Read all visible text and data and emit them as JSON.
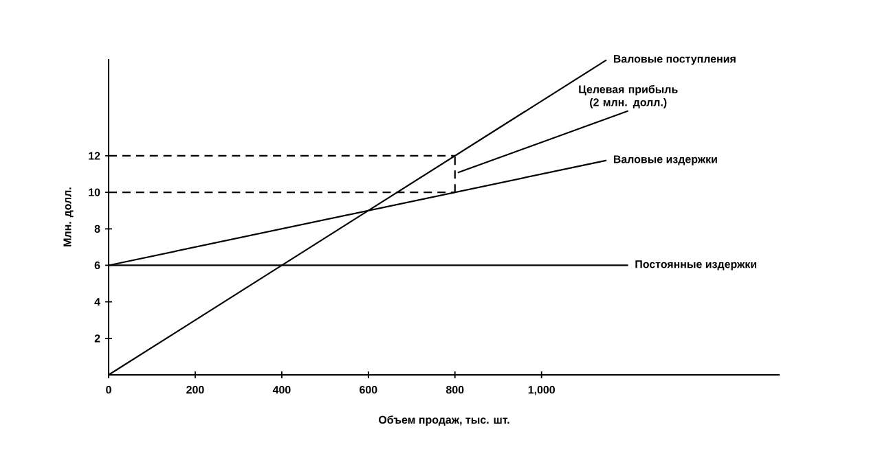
{
  "chart_data": {
    "type": "line",
    "xlabel": "Объем продаж, тыс. шт.",
    "ylabel": "Млн. долл.",
    "xlim": [
      0,
      1550
    ],
    "ylim": [
      0,
      17.3
    ],
    "xticks": [
      0,
      200,
      400,
      600,
      800,
      {
        "value": 1000,
        "label": "1,000"
      }
    ],
    "yticks": [
      2,
      4,
      6,
      8,
      10,
      12
    ],
    "grid": false,
    "marker": "none",
    "line_style": "solid",
    "series": [
      {
        "name": "Валовые поступления",
        "color": "#000000",
        "x": [
          0,
          1150
        ],
        "values": [
          0,
          17.25
        ]
      },
      {
        "name": "Валовые издержки",
        "color": "#000000",
        "x": [
          0,
          1150
        ],
        "values": [
          6,
          11.75
        ]
      },
      {
        "name": "Постоянные издержки",
        "color": "#000000",
        "x": [
          0,
          1200
        ],
        "values": [
          6,
          6
        ]
      },
      {
        "color": "#000000",
        "line_style": "dashed",
        "x": [
          0,
          800
        ],
        "values": [
          12,
          12
        ]
      },
      {
        "color": "#000000",
        "line_style": "dashed",
        "x": [
          0,
          800
        ],
        "values": [
          10,
          10
        ]
      },
      {
        "color": "#000000",
        "line_style": "dashed",
        "x": [
          800,
          800
        ],
        "values": [
          10,
          12
        ]
      }
    ],
    "annotations": [
      {
        "text": "Целевая прибыль (2 млн. долл.)",
        "x": 800,
        "y": 11
      }
    ]
  }
}
